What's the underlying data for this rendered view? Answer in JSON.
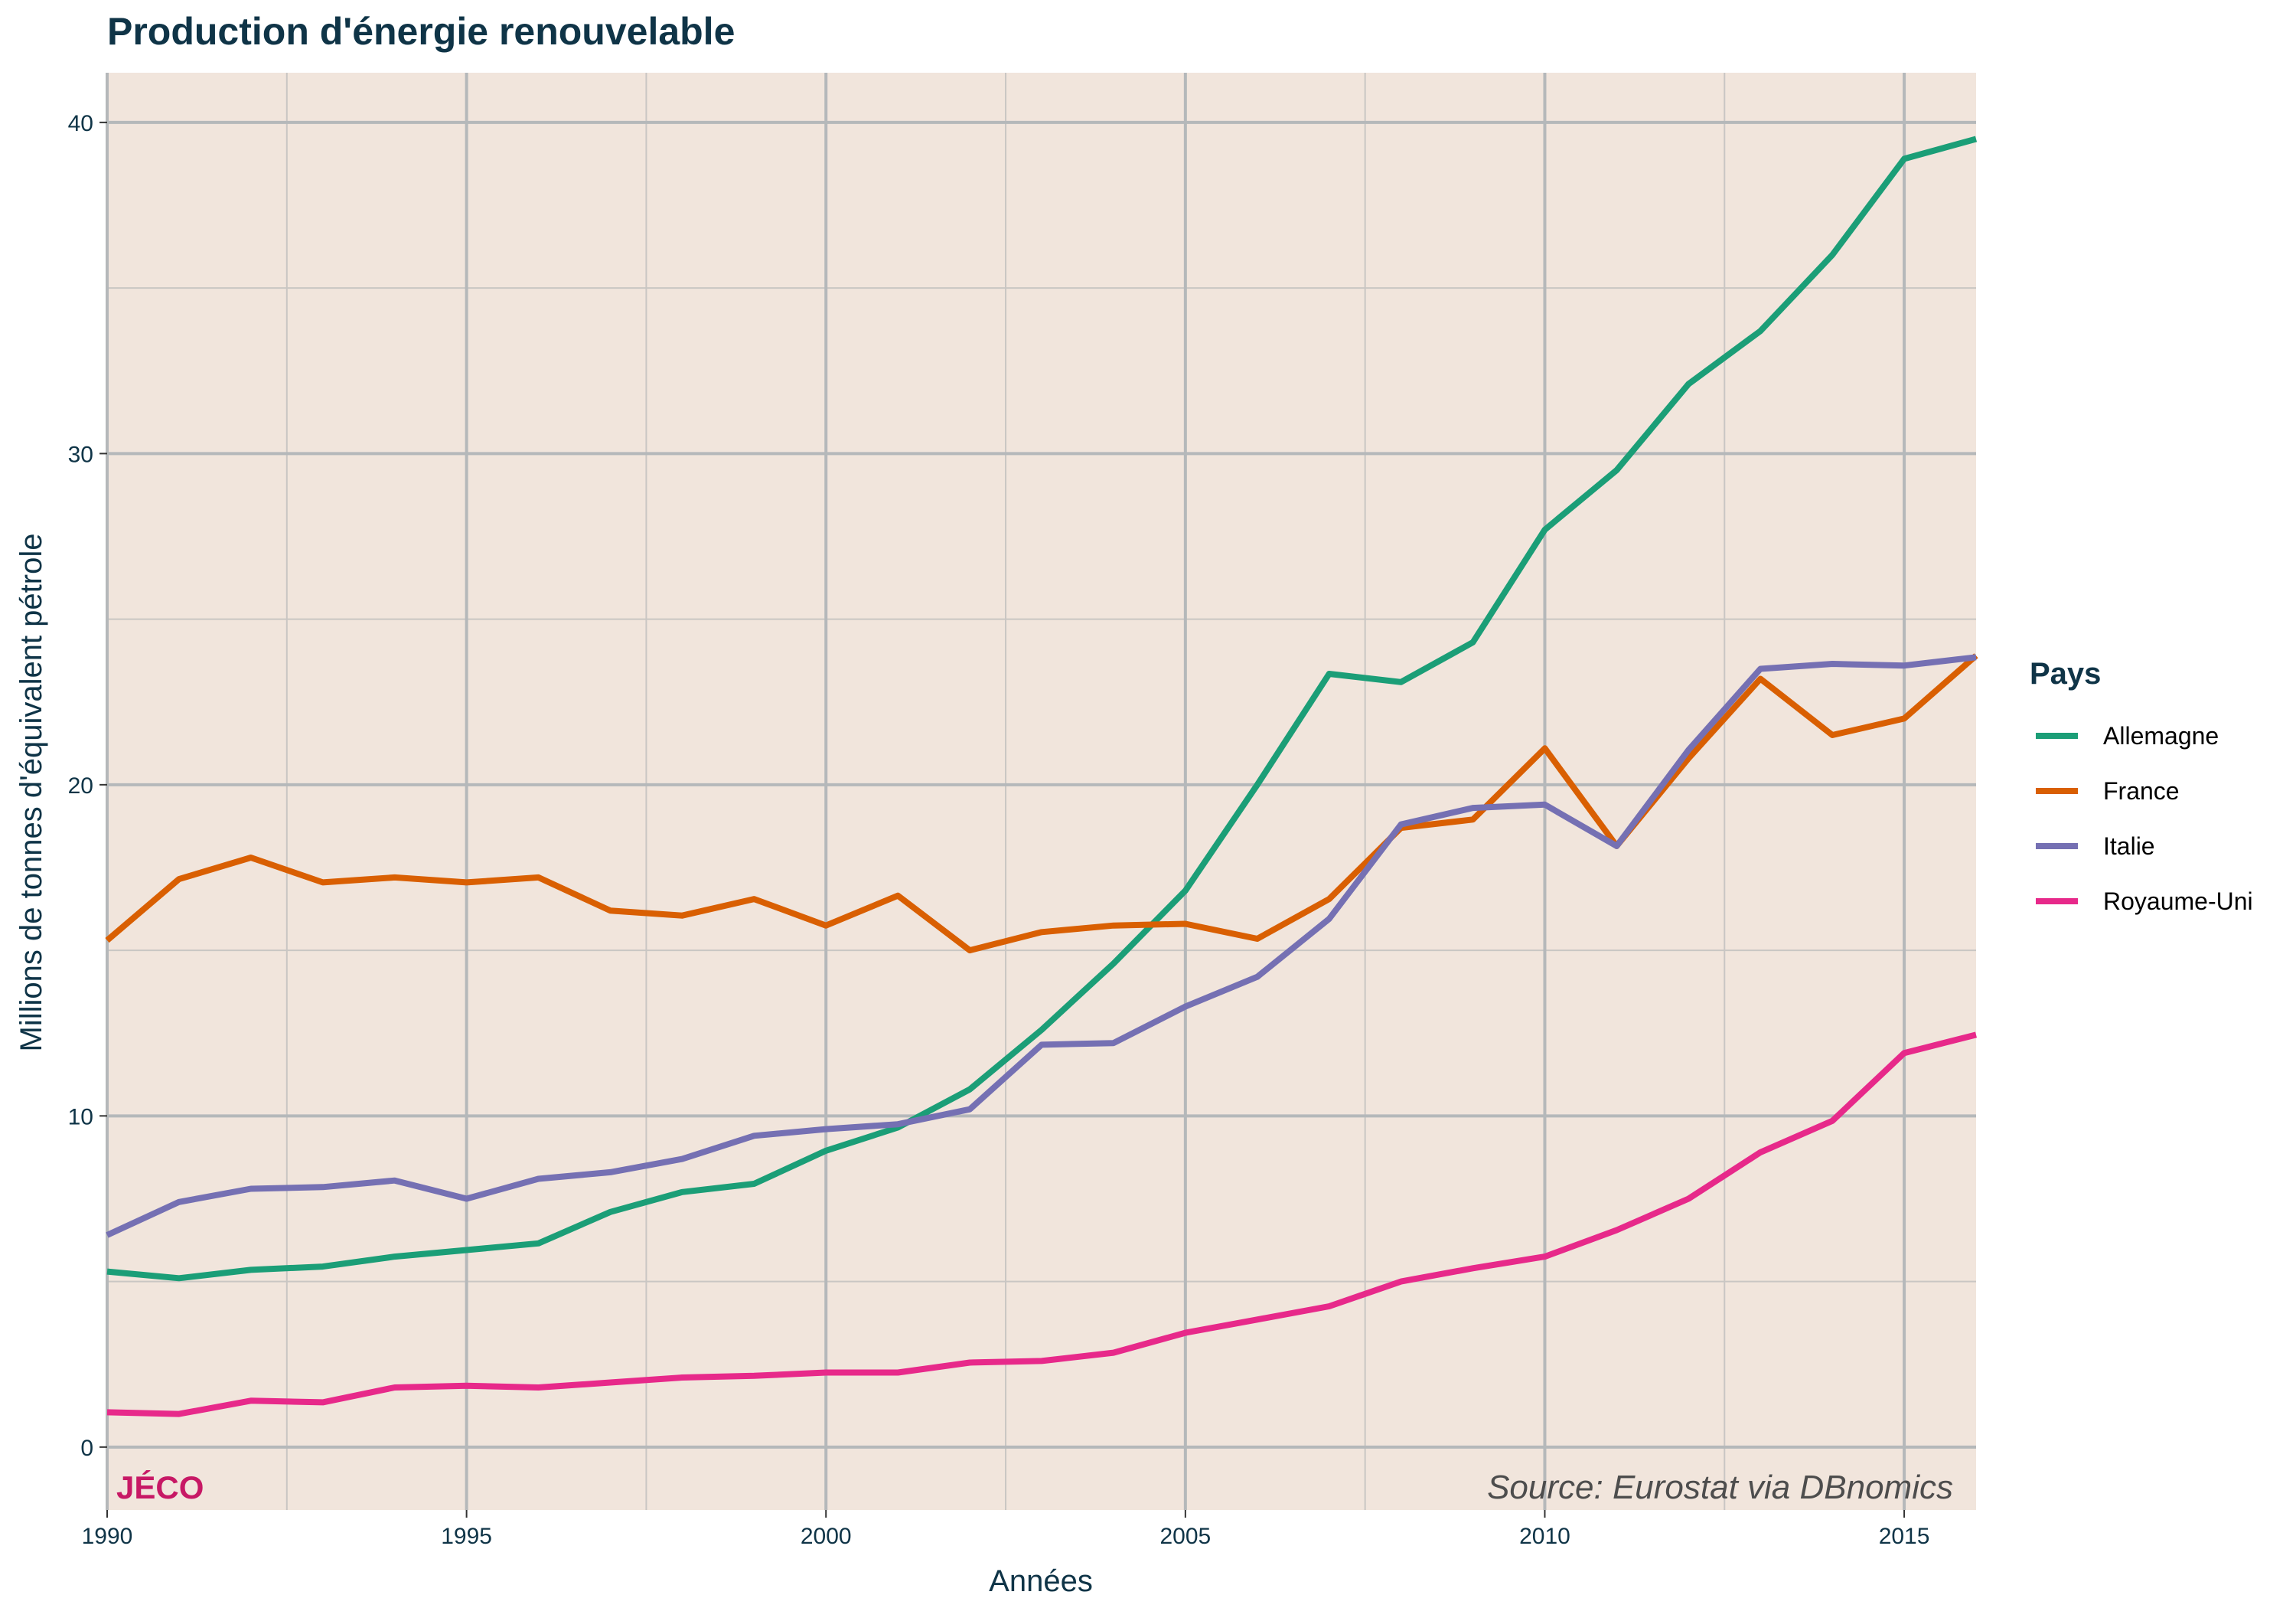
{
  "chart_data": {
    "type": "line",
    "title": "Production d'énergie renouvelable",
    "xlabel": "Années",
    "ylabel": "Millions de tonnes d'équivalent pétrole",
    "xlim": [
      1990,
      2016
    ],
    "ylim": [
      -1.9,
      41.5
    ],
    "x_ticks": [
      1990,
      1995,
      2000,
      2005,
      2010,
      2015
    ],
    "y_ticks": [
      0,
      10,
      20,
      30,
      40
    ],
    "grid": true,
    "legend": {
      "title": "Pays",
      "position": "right"
    },
    "x": [
      1990,
      1991,
      1992,
      1993,
      1994,
      1995,
      1996,
      1997,
      1998,
      1999,
      2000,
      2001,
      2002,
      2003,
      2004,
      2005,
      2006,
      2007,
      2008,
      2009,
      2010,
      2011,
      2012,
      2013,
      2014,
      2015,
      2016
    ],
    "series": [
      {
        "name": "Allemagne",
        "color": "#1b9e77",
        "values": [
          5.3,
          5.1,
          5.35,
          5.45,
          5.75,
          5.95,
          6.15,
          7.1,
          7.7,
          7.95,
          8.95,
          9.65,
          10.8,
          12.6,
          14.6,
          16.8,
          20.0,
          23.35,
          23.1,
          24.3,
          27.7,
          29.5,
          32.1,
          33.7,
          36.0,
          38.9,
          39.5
        ]
      },
      {
        "name": "France",
        "color": "#d95f02",
        "values": [
          15.3,
          17.15,
          17.8,
          17.05,
          17.2,
          17.05,
          17.2,
          16.2,
          16.05,
          16.55,
          15.75,
          16.65,
          15.0,
          15.55,
          15.75,
          15.8,
          15.35,
          16.55,
          18.7,
          18.95,
          21.1,
          18.15,
          20.8,
          23.2,
          21.5,
          22.0,
          23.9
        ]
      },
      {
        "name": "Italie",
        "color": "#7570b3",
        "values": [
          6.4,
          7.4,
          7.8,
          7.85,
          8.05,
          7.5,
          8.1,
          8.3,
          8.7,
          9.4,
          9.6,
          9.75,
          10.2,
          12.15,
          12.2,
          13.3,
          14.2,
          15.95,
          18.8,
          19.3,
          19.4,
          18.15,
          21.05,
          23.5,
          23.65,
          23.6,
          23.85
        ]
      },
      {
        "name": "Royaume-Uni",
        "color": "#e7298a",
        "values": [
          1.05,
          1.0,
          1.4,
          1.35,
          1.8,
          1.85,
          1.8,
          1.95,
          2.1,
          2.15,
          2.25,
          2.25,
          2.55,
          2.6,
          2.85,
          3.45,
          3.85,
          4.25,
          5.0,
          5.4,
          5.75,
          6.55,
          7.5,
          8.9,
          9.85,
          11.9,
          12.45
        ]
      }
    ],
    "annotations": [
      "JÉCO",
      "Source: Eurostat via DBnomics"
    ]
  },
  "brand": {
    "label": "JÉCO",
    "color": "#c71865"
  },
  "source": {
    "label": "Source: Eurostat via DBnomics"
  },
  "colors": {
    "panel": "#f1e5dc",
    "grid_major": "#b5b8ba",
    "grid_minor": "#c9c6c3"
  }
}
